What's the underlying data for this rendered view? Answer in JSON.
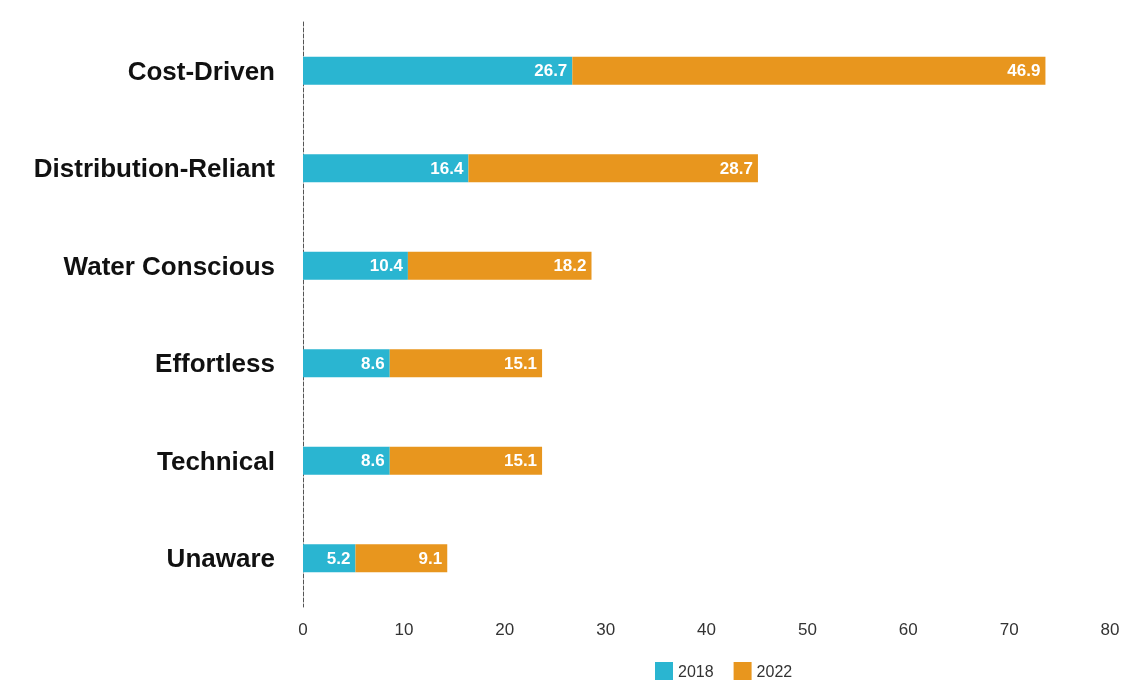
{
  "chart_data": {
    "type": "bar",
    "orientation": "horizontal",
    "stacked": true,
    "categories": [
      "Cost-Driven",
      "Distribution-Reliant",
      "Water Conscious",
      "Effortless",
      "Technical",
      "Unaware"
    ],
    "series": [
      {
        "name": "2018",
        "color": "#2ab5d1",
        "values": [
          26.7,
          16.4,
          10.4,
          8.6,
          8.6,
          5.2
        ]
      },
      {
        "name": "2022",
        "color": "#e8961e",
        "values": [
          46.9,
          28.7,
          18.2,
          15.1,
          15.1,
          9.1
        ]
      }
    ],
    "xlim": [
      0,
      80
    ],
    "xticks": [
      0,
      10,
      20,
      30,
      40,
      50,
      60,
      70,
      80
    ],
    "data_labels": true,
    "grid": false,
    "legend": "bottom"
  }
}
